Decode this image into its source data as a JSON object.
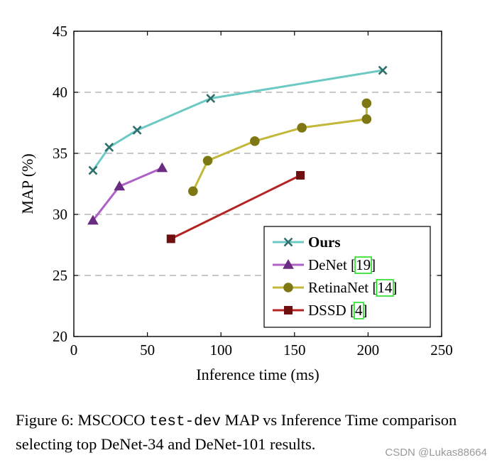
{
  "chart_data": {
    "type": "line",
    "xlabel": "Inference time (ms)",
    "ylabel": "MAP (%)",
    "xlim": [
      0,
      250
    ],
    "ylim": [
      20,
      45
    ],
    "xticks": [
      0,
      50,
      100,
      150,
      200,
      250
    ],
    "yticks": [
      20,
      25,
      30,
      35,
      40,
      45
    ],
    "grid": "horizontal dashed",
    "legend_position": "bottom-right",
    "series": [
      {
        "name": "Ours",
        "ref": "",
        "bold": true,
        "color": "#6cc9c3",
        "marker": "x",
        "x": [
          13,
          24,
          43,
          93,
          210
        ],
        "y": [
          33.6,
          35.5,
          36.9,
          39.5,
          41.8
        ]
      },
      {
        "name": "DeNet [",
        "ref": "19",
        "bold": false,
        "color": "#b061c6",
        "marker": "triangle",
        "x": [
          13,
          31,
          60
        ],
        "y": [
          29.5,
          32.3,
          33.8
        ]
      },
      {
        "name": "RetinaNet [",
        "ref": "14",
        "bold": false,
        "color": "#c2b83a",
        "marker": "circle",
        "x": [
          81,
          91,
          123,
          155,
          199,
          199
        ],
        "y": [
          31.9,
          34.4,
          36.0,
          37.1,
          37.8,
          39.1
        ]
      },
      {
        "name": "DSSD [",
        "ref": "4",
        "bold": false,
        "color": "#b52323",
        "marker": "square",
        "x": [
          66,
          154
        ],
        "y": [
          28.0,
          33.2
        ]
      }
    ],
    "legend_close": "]"
  },
  "caption": {
    "part1": "Figure 6:  MSCOCO ",
    "code": "test-dev",
    "part2": " MAP vs Inference Time comparison selecting top DeNet-34 and DeNet-101 results."
  },
  "watermark": "CSDN @Lukas88664"
}
